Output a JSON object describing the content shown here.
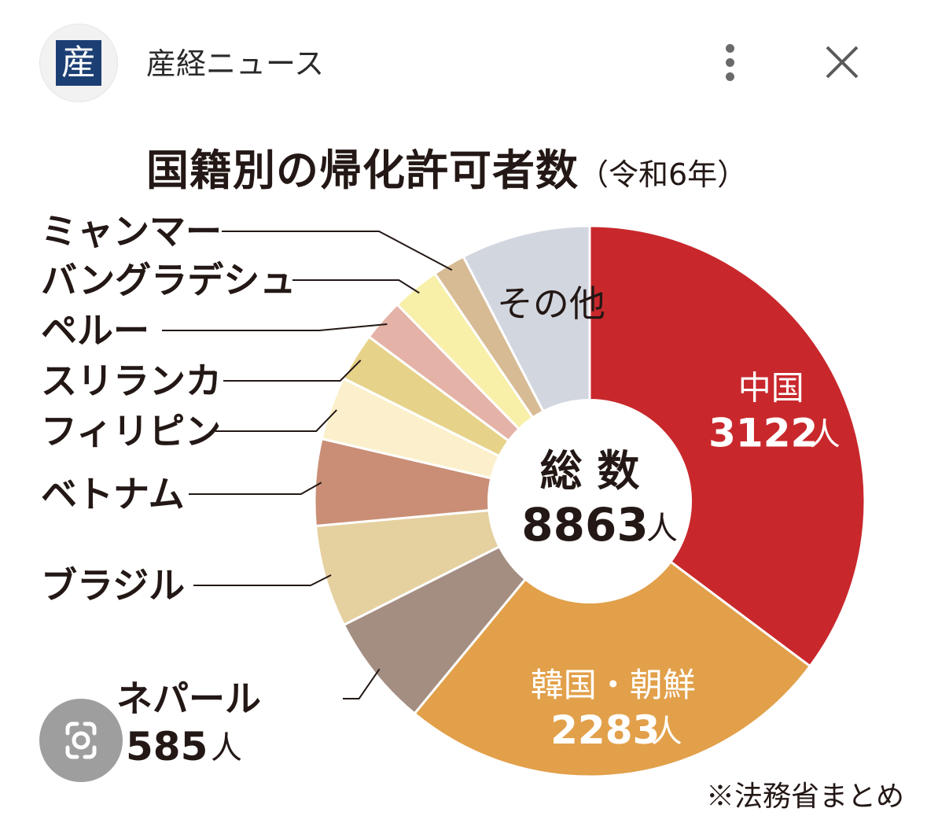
{
  "header": {
    "logo_char": "産",
    "source_name": "産経ニュース",
    "more_icon": "more-vertical-icon",
    "close_icon": "close-icon"
  },
  "title": {
    "main": "国籍別の帰化許可者数",
    "sub": "（令和6年）"
  },
  "center": {
    "label": "総 数",
    "value": "8863",
    "unit": "人"
  },
  "note": "※法務省まとめ",
  "lens_icon": "lens-search-icon",
  "chart_data": {
    "type": "pie",
    "total": 8863,
    "unit": "人",
    "slices": [
      {
        "name": "中国",
        "value": 3122,
        "value_label": "3122",
        "color": "#c8282c"
      },
      {
        "name": "韓国・朝鮮",
        "value": 2283,
        "value_label": "2283",
        "color": "#e2a04a"
      },
      {
        "name": "ネパール",
        "value": 585,
        "value_label": "585",
        "color": "#a48e82"
      },
      {
        "name": "ブラジル",
        "value": 530,
        "color": "#e5d0a0"
      },
      {
        "name": "ベトナム",
        "value": 450,
        "color": "#c98e75"
      },
      {
        "name": "フィリピン",
        "value": 330,
        "color": "#fbf0cb"
      },
      {
        "name": "スリランカ",
        "value": 250,
        "color": "#e6d389"
      },
      {
        "name": "ペルー",
        "value": 220,
        "color": "#e4b2a6"
      },
      {
        "name": "バングラデシュ",
        "value": 250,
        "color": "#f8efa9"
      },
      {
        "name": "ミャンマー",
        "value": 170,
        "color": "#d7bb94"
      },
      {
        "name": "その他",
        "value": 673,
        "color": "#d2d6df"
      }
    ]
  }
}
